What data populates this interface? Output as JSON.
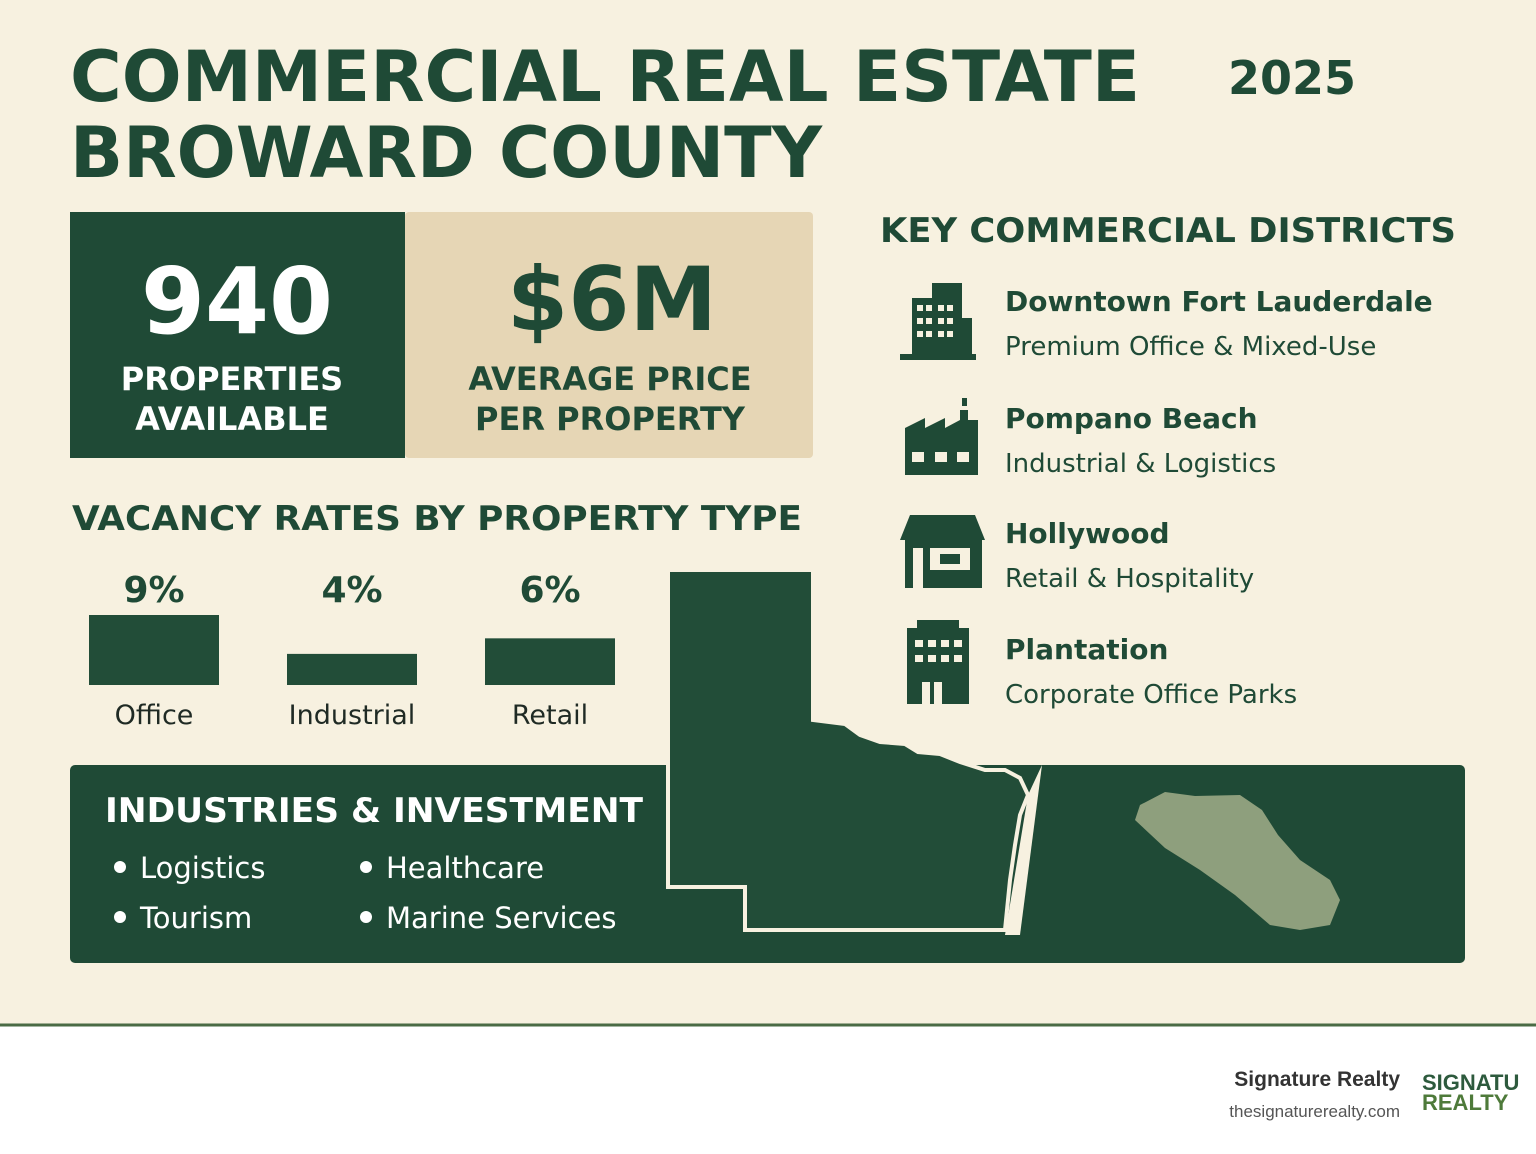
{
  "header": {
    "title_lines": [
      "COMMERCIAL REAL ESTATE",
      "BROWARD COUNTY"
    ],
    "year": "2025"
  },
  "stats": [
    {
      "value": "940",
      "label_lines": [
        "PROPERTIES",
        "AVAILABLE"
      ]
    },
    {
      "value": "$6M",
      "label_lines": [
        "AVERAGE PRICE",
        "PER PROPERTY"
      ]
    }
  ],
  "chart_data": {
    "type": "bar",
    "title": "VACANCY RATES BY PROPERTY TYPE",
    "categories": [
      "Office",
      "Industrial",
      "Retail"
    ],
    "values": [
      9,
      4,
      6
    ],
    "value_labels": [
      "9%",
      "4%",
      "6%"
    ],
    "color": "#224d38"
  },
  "districts": {
    "title": "KEY COMMERCIAL DISTRICTS",
    "items": [
      {
        "name": "Downtown Fort Lauderdale",
        "description": "Premium Office & Mixed-Use"
      },
      {
        "name": "Pompano Beach",
        "description": "Industrial & Logistics"
      },
      {
        "name": "Hollywood",
        "description": "Retail & Hospitality"
      },
      {
        "name": "Plantation",
        "description": "Corporate Office Parks"
      }
    ]
  },
  "industries": {
    "title": "INDUSTRIES & INVESTMENT",
    "items": [
      "Logistics",
      "Healthcare",
      "Tourism",
      "Marine Services"
    ]
  },
  "footer": {
    "company": "Signature Realty",
    "website": "thesignaturerealty.com",
    "logo_lines": [
      "SIGNATU",
      "REALTY"
    ]
  }
}
